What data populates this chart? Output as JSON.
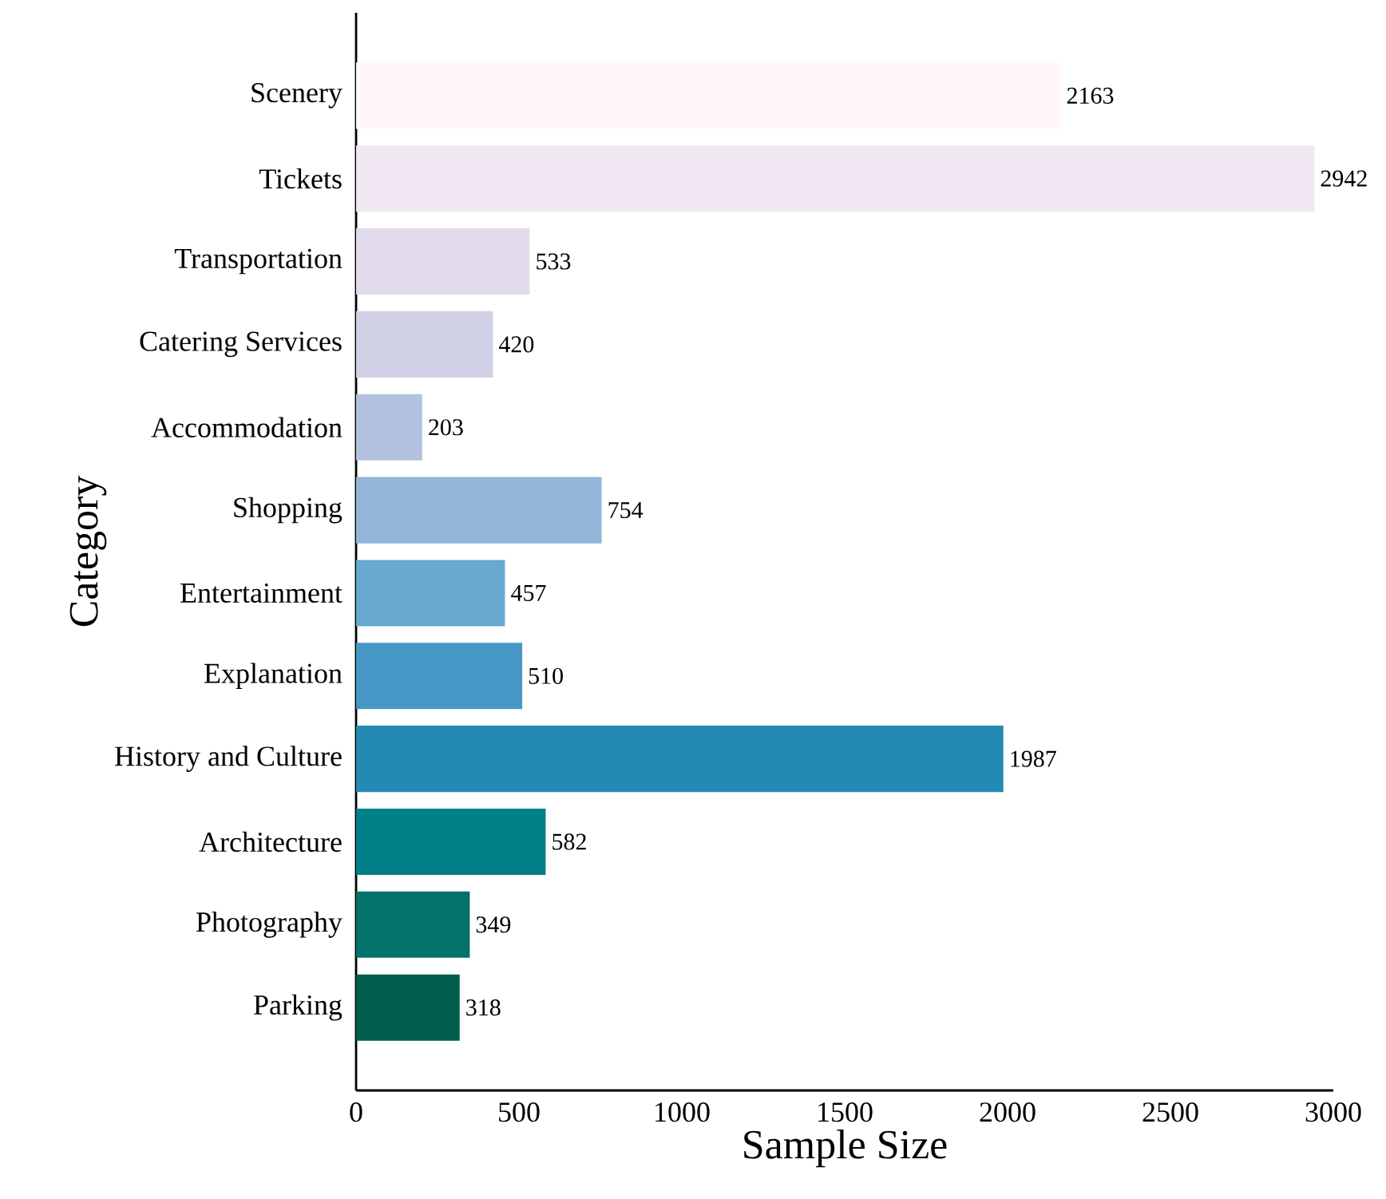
{
  "chart_data": {
    "type": "bar",
    "orientation": "horizontal",
    "xlabel": "Sample Size",
    "ylabel": "Category",
    "categories": [
      "Scenery",
      "Tickets",
      "Transportation",
      "Catering Services",
      "Accommodation",
      "Shopping",
      "Entertainment",
      "Explanation",
      "History and Culture",
      "Architecture",
      "Photography",
      "Parking"
    ],
    "values": [
      2163,
      2942,
      533,
      420,
      203,
      754,
      457,
      510,
      1987,
      582,
      349,
      318
    ],
    "colors": [
      "#fff7fb",
      "#f1e7f3",
      "#e2dbed",
      "#d1d1e7",
      "#b3c3df",
      "#93b6d9",
      "#67a9cf",
      "#4697c6",
      "#238ab4",
      "#028089",
      "#04726a",
      "#025e4c"
    ],
    "xlim": [
      0,
      3000
    ],
    "xticks": [
      0,
      500,
      1000,
      1500,
      2000,
      2500,
      3000
    ],
    "data_labels": true,
    "grid": false
  }
}
